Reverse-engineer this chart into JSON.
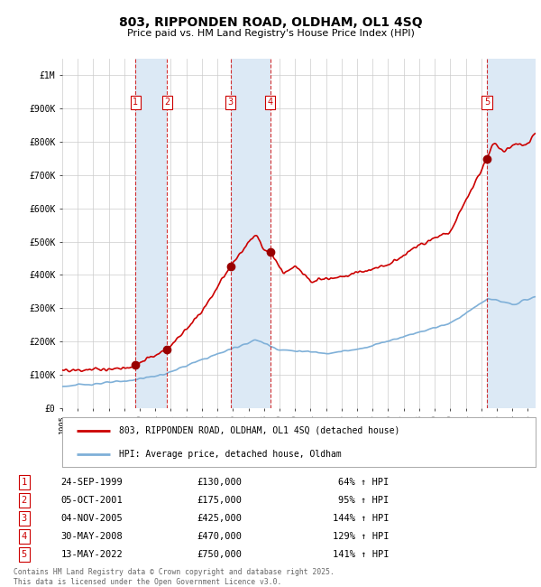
{
  "title": "803, RIPPONDEN ROAD, OLDHAM, OL1 4SQ",
  "subtitle": "Price paid vs. HM Land Registry's House Price Index (HPI)",
  "ylabel_ticks": [
    "£0",
    "£100K",
    "£200K",
    "£300K",
    "£400K",
    "£500K",
    "£600K",
    "£700K",
    "£800K",
    "£900K",
    "£1M"
  ],
  "ytick_values": [
    0,
    100000,
    200000,
    300000,
    400000,
    500000,
    600000,
    700000,
    800000,
    900000,
    1000000
  ],
  "ylim": [
    0,
    1050000
  ],
  "xlim_start": 1995.0,
  "xlim_end": 2025.5,
  "sale_dates": [
    1999.73,
    2001.76,
    2005.84,
    2008.41,
    2022.36
  ],
  "sale_prices": [
    130000,
    175000,
    425000,
    470000,
    750000
  ],
  "sale_labels": [
    "1",
    "2",
    "3",
    "4",
    "5"
  ],
  "sale_info": [
    {
      "label": "1",
      "date": "24-SEP-1999",
      "price": "£130,000",
      "hpi": "64% ↑ HPI"
    },
    {
      "label": "2",
      "date": "05-OCT-2001",
      "price": "£175,000",
      "hpi": "95% ↑ HPI"
    },
    {
      "label": "3",
      "date": "04-NOV-2005",
      "price": "£425,000",
      "hpi": "144% ↑ HPI"
    },
    {
      "label": "4",
      "date": "30-MAY-2008",
      "price": "£470,000",
      "hpi": "129% ↑ HPI"
    },
    {
      "label": "5",
      "date": "13-MAY-2022",
      "price": "£750,000",
      "hpi": "141% ↑ HPI"
    }
  ],
  "hpi_line_color": "#7fb0d8",
  "price_line_color": "#cc0000",
  "sale_marker_color": "#990000",
  "sale_box_color": "#cc0000",
  "shading_color": "#dce9f5",
  "background_color": "#ffffff",
  "grid_color": "#cccccc",
  "legend_border_color": "#aaaaaa",
  "footer_text": "Contains HM Land Registry data © Crown copyright and database right 2025.\nThis data is licensed under the Open Government Licence v3.0."
}
